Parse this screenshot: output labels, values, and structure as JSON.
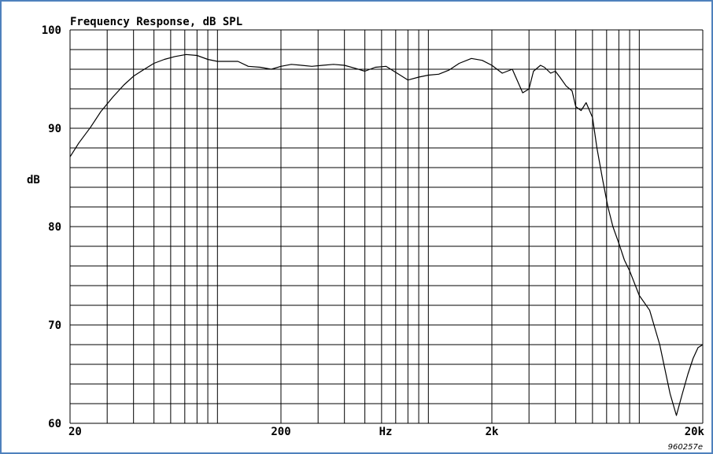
{
  "chart_data": {
    "type": "line",
    "title": "Frequency Response, dB SPL",
    "xlabel": "Hz",
    "ylabel": "dB",
    "x_scale": "log",
    "xlim": [
      20,
      20000
    ],
    "ylim": [
      60,
      100
    ],
    "grid": true,
    "x_ticks": [
      {
        "value": 20,
        "label": "20"
      },
      {
        "value": 200,
        "label": "200"
      },
      {
        "value": 2000,
        "label": "2k"
      },
      {
        "value": 20000,
        "label": "20k"
      }
    ],
    "y_ticks": [
      {
        "value": 100,
        "label": "100"
      },
      {
        "value": 90,
        "label": "90"
      },
      {
        "value": 80,
        "label": "80"
      },
      {
        "value": 70,
        "label": "70"
      },
      {
        "value": 60,
        "label": "60"
      }
    ],
    "annotation": "960257e",
    "border_color": "#4f81bd",
    "series": [
      {
        "color": "#000000",
        "x": [
          20,
          22,
          25,
          28,
          32,
          36,
          40,
          45,
          50,
          56,
          63,
          71,
          80,
          90,
          100,
          112,
          125,
          140,
          160,
          180,
          200,
          224,
          250,
          280,
          315,
          355,
          400,
          450,
          500,
          560,
          630,
          710,
          800,
          900,
          1000,
          1120,
          1250,
          1400,
          1600,
          1800,
          2000,
          2240,
          2500,
          2800,
          3000,
          3150,
          3400,
          3550,
          3800,
          4000,
          4200,
          4500,
          4800,
          5000,
          5300,
          5600,
          6000,
          6300,
          6700,
          7100,
          7500,
          8000,
          8500,
          9000,
          10000,
          11200,
          12500,
          14000,
          15000,
          16000,
          17000,
          18000,
          19000,
          20000
        ],
        "y": [
          87.1,
          88.5,
          90.1,
          91.7,
          93.2,
          94.4,
          95.3,
          96.0,
          96.6,
          97.0,
          97.3,
          97.5,
          97.4,
          97.0,
          96.8,
          96.8,
          96.8,
          96.3,
          96.2,
          96.0,
          96.3,
          96.5,
          96.4,
          96.3,
          96.4,
          96.5,
          96.4,
          96.1,
          95.8,
          96.2,
          96.3,
          95.6,
          94.9,
          95.2,
          95.4,
          95.5,
          95.9,
          96.6,
          97.1,
          96.9,
          96.4,
          95.6,
          96.0,
          93.6,
          94.0,
          95.8,
          96.4,
          96.2,
          95.6,
          95.8,
          95.2,
          94.3,
          93.8,
          92.2,
          91.8,
          92.6,
          91.1,
          88.0,
          84.8,
          82.0,
          80.0,
          78.3,
          76.6,
          75.5,
          73.0,
          71.5,
          68.0,
          63.0,
          60.8,
          63.0,
          65.0,
          66.6,
          67.7,
          68.0
        ]
      }
    ]
  }
}
